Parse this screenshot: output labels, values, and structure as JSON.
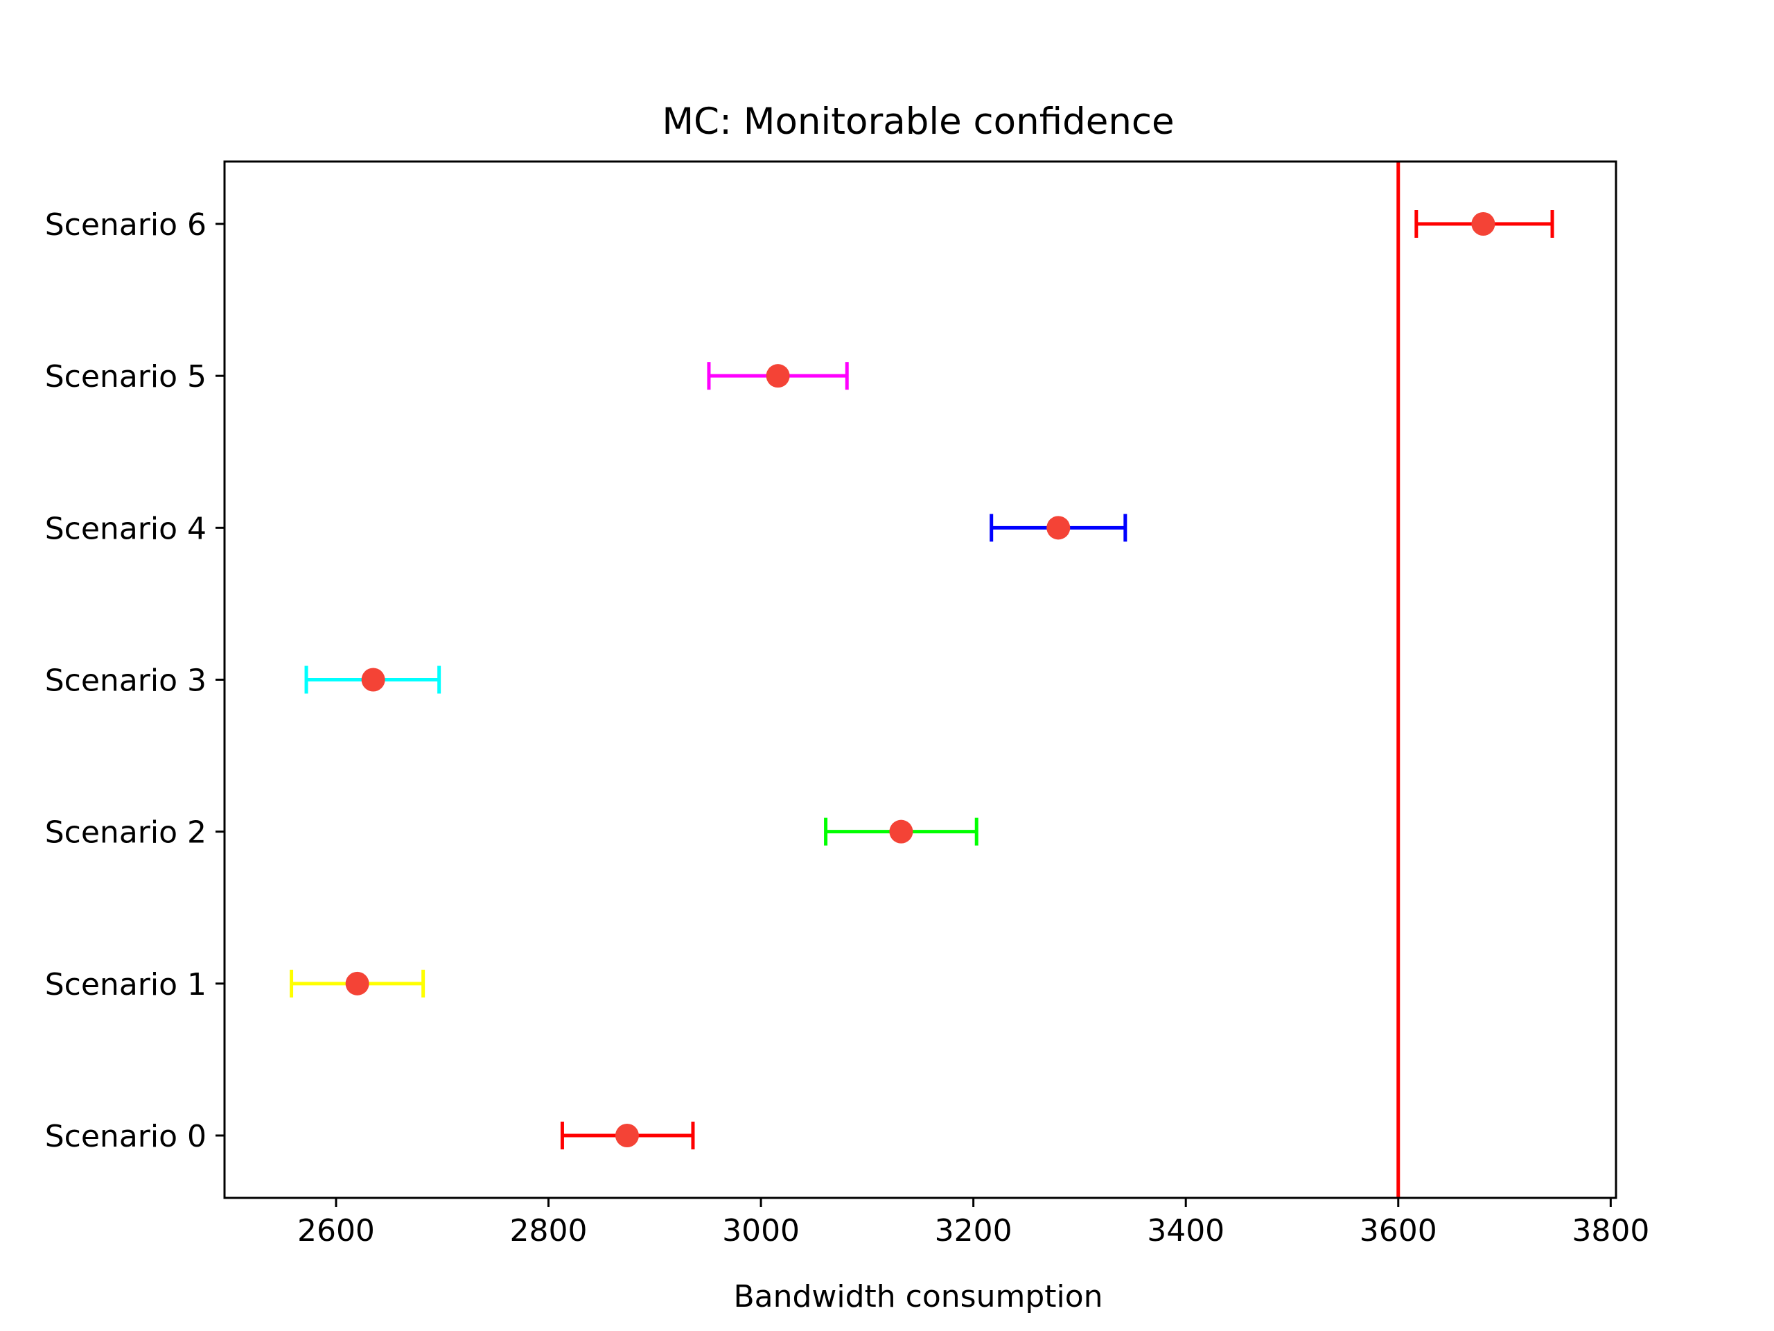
{
  "chart_data": {
    "type": "errorbar",
    "title": "MC: Monitorable confidence",
    "xlabel": "Bandwidth consumption",
    "ylabel": "",
    "xlim": [
      2495,
      3805
    ],
    "xticks": [
      2600,
      2800,
      3000,
      3200,
      3400,
      3600,
      3800
    ],
    "xtick_labels": [
      "2600",
      "2800",
      "3000",
      "3200",
      "3400",
      "3600",
      "3800"
    ],
    "grid": false,
    "legend": "none",
    "marker_color": "#f44336",
    "points": [
      {
        "label": "Scenario 0",
        "value": 2874,
        "low": 2813,
        "high": 2936,
        "color": "#ff0000"
      },
      {
        "label": "Scenario 1",
        "value": 2620,
        "low": 2558,
        "high": 2682,
        "color": "#ffff00"
      },
      {
        "label": "Scenario 2",
        "value": 3132,
        "low": 3061,
        "high": 3203,
        "color": "#00ff00"
      },
      {
        "label": "Scenario 3",
        "value": 2635,
        "low": 2572,
        "high": 2697,
        "color": "#00ffff"
      },
      {
        "label": "Scenario 4",
        "value": 3280,
        "low": 3217,
        "high": 3343,
        "color": "#0000ff"
      },
      {
        "label": "Scenario 5",
        "value": 3016,
        "low": 2951,
        "high": 3081,
        "color": "#ff00ff"
      },
      {
        "label": "Scenario 6",
        "value": 3680,
        "low": 3617,
        "high": 3745,
        "color": "#ff0000"
      }
    ],
    "reference_line": {
      "x": 3600,
      "color": "#ff0000"
    }
  }
}
